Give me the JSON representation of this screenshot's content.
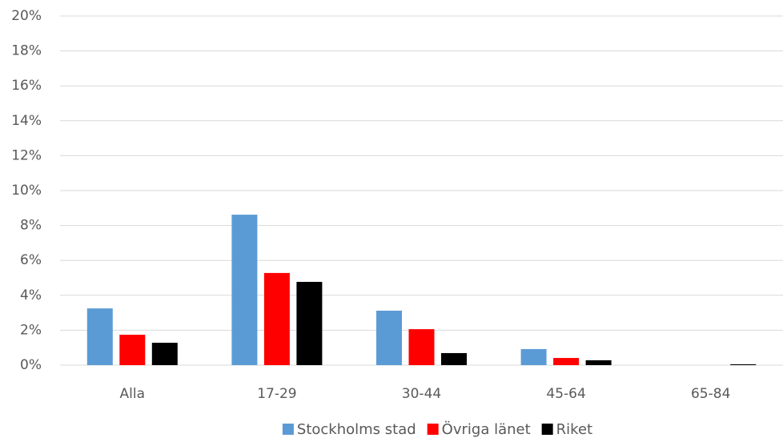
{
  "chart_data": {
    "type": "bar",
    "categories": [
      "Alla",
      "17-29",
      "30-44",
      "45-64",
      "65-84"
    ],
    "series": [
      {
        "name": "Stockholms stad",
        "color": "#5b9bd5",
        "values": [
          3.25,
          8.62,
          3.12,
          0.92,
          0
        ]
      },
      {
        "name": "Övriga länet",
        "color": "#ff0000",
        "values": [
          1.74,
          5.28,
          2.06,
          0.41,
          0
        ]
      },
      {
        "name": "Riket",
        "color": "#000000",
        "values": [
          1.28,
          4.77,
          0.69,
          0.28,
          0.05
        ]
      }
    ],
    "ylim": [
      0,
      20
    ],
    "yticks": [
      {
        "value": 0,
        "label": "0%"
      },
      {
        "value": 2,
        "label": "2%"
      },
      {
        "value": 4,
        "label": "4%"
      },
      {
        "value": 6,
        "label": "6%"
      },
      {
        "value": 8,
        "label": "8%"
      },
      {
        "value": 10,
        "label": "10%"
      },
      {
        "value": 12,
        "label": "12%"
      },
      {
        "value": 14,
        "label": "14%"
      },
      {
        "value": 16,
        "label": "16%"
      },
      {
        "value": 18,
        "label": "18%"
      },
      {
        "value": 20,
        "label": "20%"
      }
    ],
    "grid": true,
    "legend": "bottom"
  }
}
